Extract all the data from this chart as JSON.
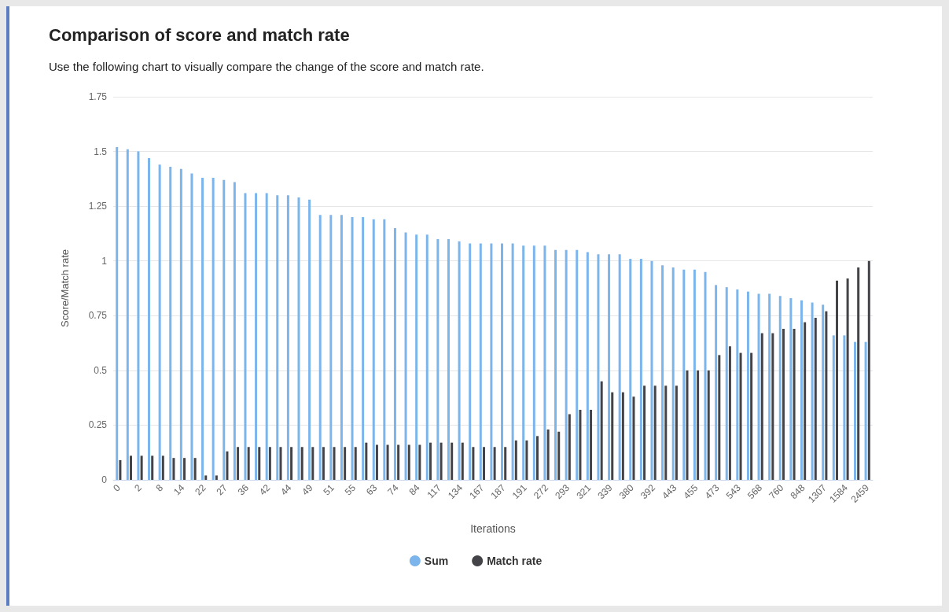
{
  "chart_data": {
    "type": "bar",
    "title": "Comparison of score and match rate",
    "subtitle": "Use the following chart to visually compare the change of the score and match rate.",
    "xlabel": "Iterations",
    "ylabel": "Score/Match rate",
    "categories": [
      "0",
      null,
      "2",
      null,
      "8",
      null,
      "14",
      null,
      "22",
      null,
      "27",
      null,
      "36",
      null,
      "42",
      null,
      "44",
      null,
      "49",
      null,
      "51",
      null,
      "55",
      null,
      "63",
      null,
      "74",
      null,
      "84",
      null,
      "117",
      null,
      "134",
      null,
      "167",
      null,
      "187",
      null,
      "191",
      null,
      "272",
      null,
      "293",
      null,
      "321",
      null,
      "339",
      null,
      "380",
      null,
      "392",
      null,
      "443",
      null,
      "455",
      null,
      "473",
      null,
      "543",
      null,
      "568",
      null,
      "760",
      null,
      "848",
      null,
      "1307",
      null,
      "1584",
      null,
      "2459"
    ],
    "series": [
      {
        "name": "Sum",
        "color": "#7cb5ec",
        "values": [
          1.52,
          1.51,
          1.5,
          1.47,
          1.44,
          1.43,
          1.42,
          1.4,
          1.38,
          1.38,
          1.37,
          1.36,
          1.31,
          1.31,
          1.31,
          1.3,
          1.3,
          1.29,
          1.28,
          1.21,
          1.21,
          1.21,
          1.2,
          1.2,
          1.19,
          1.19,
          1.15,
          1.13,
          1.12,
          1.12,
          1.1,
          1.1,
          1.09,
          1.08,
          1.08,
          1.08,
          1.08,
          1.08,
          1.07,
          1.07,
          1.07,
          1.05,
          1.05,
          1.05,
          1.04,
          1.03,
          1.03,
          1.03,
          1.01,
          1.01,
          1.0,
          0.98,
          0.97,
          0.96,
          0.96,
          0.95,
          0.89,
          0.88,
          0.87,
          0.86,
          0.85,
          0.85,
          0.84,
          0.83,
          0.82,
          0.81,
          0.8,
          0.66,
          0.66,
          0.63,
          0.63
        ]
      },
      {
        "name": "Match rate",
        "color": "#434348",
        "values": [
          0.09,
          0.11,
          0.11,
          0.11,
          0.11,
          0.1,
          0.1,
          0.1,
          0.02,
          0.02,
          0.13,
          0.15,
          0.15,
          0.15,
          0.15,
          0.15,
          0.15,
          0.15,
          0.15,
          0.15,
          0.15,
          0.15,
          0.15,
          0.17,
          0.16,
          0.16,
          0.16,
          0.16,
          0.16,
          0.17,
          0.17,
          0.17,
          0.17,
          0.15,
          0.15,
          0.15,
          0.15,
          0.18,
          0.18,
          0.2,
          0.23,
          0.22,
          0.3,
          0.32,
          0.32,
          0.45,
          0.4,
          0.4,
          0.38,
          0.43,
          0.43,
          0.43,
          0.43,
          0.5,
          0.5,
          0.5,
          0.57,
          0.61,
          0.58,
          0.58,
          0.67,
          0.67,
          0.69,
          0.69,
          0.72,
          0.74,
          0.77,
          0.91,
          0.92,
          0.97,
          1.0
        ]
      }
    ],
    "ylim": [
      0,
      1.75
    ],
    "yticks": [
      0,
      0.25,
      0.5,
      0.75,
      1,
      1.25,
      1.5,
      1.75
    ],
    "grid": "y",
    "legend": "bottom"
  }
}
